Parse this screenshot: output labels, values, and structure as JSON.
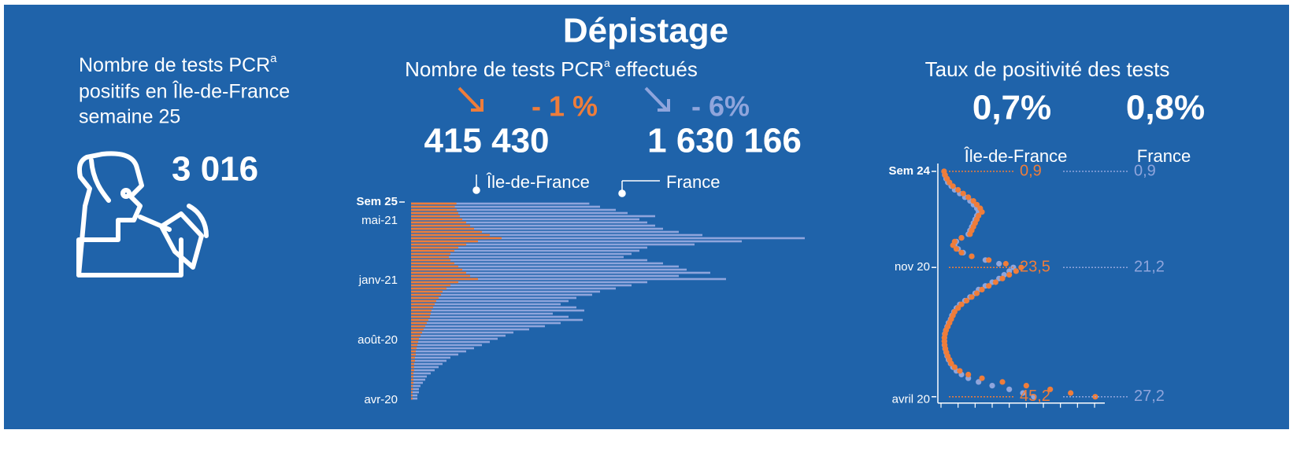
{
  "header": {
    "title": "Dépistage"
  },
  "left": {
    "label_lines": [
      "Nombre de tests PCR",
      "positifs en Île-de-France",
      "semaine 25"
    ],
    "superscript": "a",
    "value": "3 016"
  },
  "middle": {
    "changes": [
      "- 1 %",
      "- 6%"
    ],
    "totals": [
      "415 430",
      "1 630 166"
    ]
  },
  "chart_data": [
    {
      "type": "bar",
      "orientation": "horizontal",
      "title": "Nombre de tests PCR",
      "title_superscript": "a",
      "title_suffix": "effectués",
      "categories": [
        "Sem 25",
        null,
        null,
        null,
        null,
        "mai-21",
        null,
        null,
        null,
        null,
        null,
        null,
        null,
        null,
        null,
        null,
        null,
        null,
        null,
        null,
        null,
        null,
        null,
        null,
        "janv-21",
        null,
        null,
        null,
        null,
        null,
        null,
        null,
        null,
        null,
        null,
        null,
        null,
        null,
        null,
        null,
        null,
        null,
        null,
        "août-20",
        null,
        null,
        null,
        null,
        null,
        null,
        null,
        null,
        null,
        null,
        null,
        null,
        null,
        null,
        null,
        null,
        null,
        null,
        "avr-20"
      ],
      "series": [
        {
          "name": "France",
          "color": "#8fa5dc",
          "values": [
            1630166,
            1728000,
            1872000,
            1980000,
            2232000,
            2088000,
            2160000,
            2232000,
            2304000,
            2448000,
            2664000,
            3600000,
            3024000,
            2592000,
            2160000,
            2088000,
            2016000,
            1944000,
            2160000,
            2304000,
            2448000,
            2520000,
            2736000,
            2448000,
            2880000,
            2160000,
            2016000,
            1872000,
            1728000,
            1656000,
            1512000,
            1440000,
            1368000,
            1512000,
            1584000,
            1296000,
            1440000,
            1570000,
            1368000,
            1224000,
            1080000,
            936000,
            864000,
            792000,
            720000,
            648000,
            576000,
            504000,
            432000,
            360000,
            324000,
            288000,
            252000,
            216000,
            180000,
            144000,
            130000,
            108000,
            86000,
            72000,
            72000,
            58000,
            58000
          ]
        },
        {
          "name": "Île-de-France",
          "color": "#ef7d3a",
          "values": [
            415430,
            400000,
            418000,
            432000,
            446000,
            468000,
            504000,
            540000,
            576000,
            648000,
            720000,
            828000,
            612000,
            504000,
            432000,
            396000,
            360000,
            346000,
            360000,
            396000,
            432000,
            468000,
            504000,
            540000,
            612000,
            432000,
            360000,
            324000,
            288000,
            274000,
            252000,
            230000,
            216000,
            202000,
            187000,
            180000,
            173000,
            158000,
            144000,
            130000,
            115000,
            101000,
            86000,
            72000,
            65000,
            58000,
            50000,
            43000,
            43000,
            36000,
            36000,
            29000,
            29000,
            29000,
            22000,
            22000,
            22000,
            22000,
            18000,
            18000,
            14000,
            14000,
            14000
          ]
        }
      ]
    },
    {
      "type": "dot",
      "title": "Taux de positivité des tests",
      "headline_values": [
        "0,7%",
        "0,8%"
      ],
      "categories": [
        "Sem 24",
        null,
        null,
        null,
        null,
        null,
        null,
        null,
        null,
        null,
        null,
        null,
        null,
        null,
        null,
        null,
        null,
        null,
        null,
        null,
        null,
        null,
        null,
        null,
        null,
        null,
        "nov 20",
        null,
        null,
        null,
        null,
        null,
        null,
        null,
        null,
        null,
        null,
        null,
        null,
        null,
        null,
        null,
        null,
        null,
        null,
        null,
        null,
        null,
        null,
        null,
        null,
        null,
        null,
        null,
        null,
        null,
        null,
        null,
        null,
        null,
        null,
        "avril 20"
      ],
      "xlim": [
        0,
        48
      ],
      "xticks": [
        0,
        5,
        10,
        15,
        20,
        25,
        30,
        35,
        40,
        45
      ],
      "series": [
        {
          "name": "Île-de-France",
          "color": "#ef7d3a",
          "values": [
            0.9,
            1.2,
            1.8,
            2.5,
            3.5,
            5,
            6.5,
            8,
            9.5,
            10.5,
            11.5,
            12,
            11,
            10.5,
            10,
            9.5,
            9,
            8.5,
            6,
            4,
            3.5,
            4.5,
            6,
            9,
            14,
            19,
            23.5,
            22,
            20,
            18,
            16,
            14,
            12,
            10.5,
            9,
            7.5,
            6,
            5,
            4,
            3.5,
            3,
            2.5,
            2,
            1.5,
            1.2,
            1,
            1,
            1.1,
            1.3,
            1.6,
            2,
            2.5,
            3,
            4,
            5.5,
            8,
            12,
            18,
            25,
            32,
            38,
            45.2
          ],
          "value_labels": [
            "0,9",
            null,
            null,
            null,
            null,
            null,
            null,
            null,
            null,
            null,
            null,
            null,
            null,
            null,
            null,
            null,
            null,
            null,
            null,
            null,
            null,
            null,
            null,
            null,
            null,
            null,
            "23,5",
            null,
            null,
            null,
            null,
            null,
            null,
            null,
            null,
            null,
            null,
            null,
            null,
            null,
            null,
            null,
            null,
            null,
            null,
            null,
            null,
            null,
            null,
            null,
            null,
            null,
            null,
            null,
            null,
            null,
            null,
            null,
            null,
            null,
            null,
            "45,2"
          ]
        },
        {
          "name": "France",
          "color": "#8fa5dc",
          "values": [
            0.9,
            1.1,
            1.5,
            2,
            3,
            4,
            5.5,
            7,
            8.5,
            9.5,
            10.5,
            11,
            10.5,
            10,
            9.5,
            9,
            8.5,
            8,
            6,
            4.5,
            4,
            5,
            6.5,
            9,
            13,
            17,
            21.2,
            20,
            18.5,
            17,
            15,
            13,
            11,
            10,
            8.5,
            7,
            5.5,
            4.5,
            3.8,
            3.2,
            2.8,
            2.2,
            1.8,
            1.4,
            1.1,
            1,
            1,
            1,
            1.2,
            1.5,
            1.8,
            2.2,
            2.8,
            3.5,
            4.5,
            6,
            8,
            11,
            15,
            20,
            24,
            27.2
          ],
          "value_labels": [
            "0,9",
            null,
            null,
            null,
            null,
            null,
            null,
            null,
            null,
            null,
            null,
            null,
            null,
            null,
            null,
            null,
            null,
            null,
            null,
            null,
            null,
            null,
            null,
            null,
            null,
            null,
            "21,2",
            null,
            null,
            null,
            null,
            null,
            null,
            null,
            null,
            null,
            null,
            null,
            null,
            null,
            null,
            null,
            null,
            null,
            null,
            null,
            null,
            null,
            null,
            null,
            null,
            null,
            null,
            null,
            null,
            null,
            null,
            null,
            null,
            null,
            null,
            "27,2"
          ]
        }
      ]
    }
  ]
}
